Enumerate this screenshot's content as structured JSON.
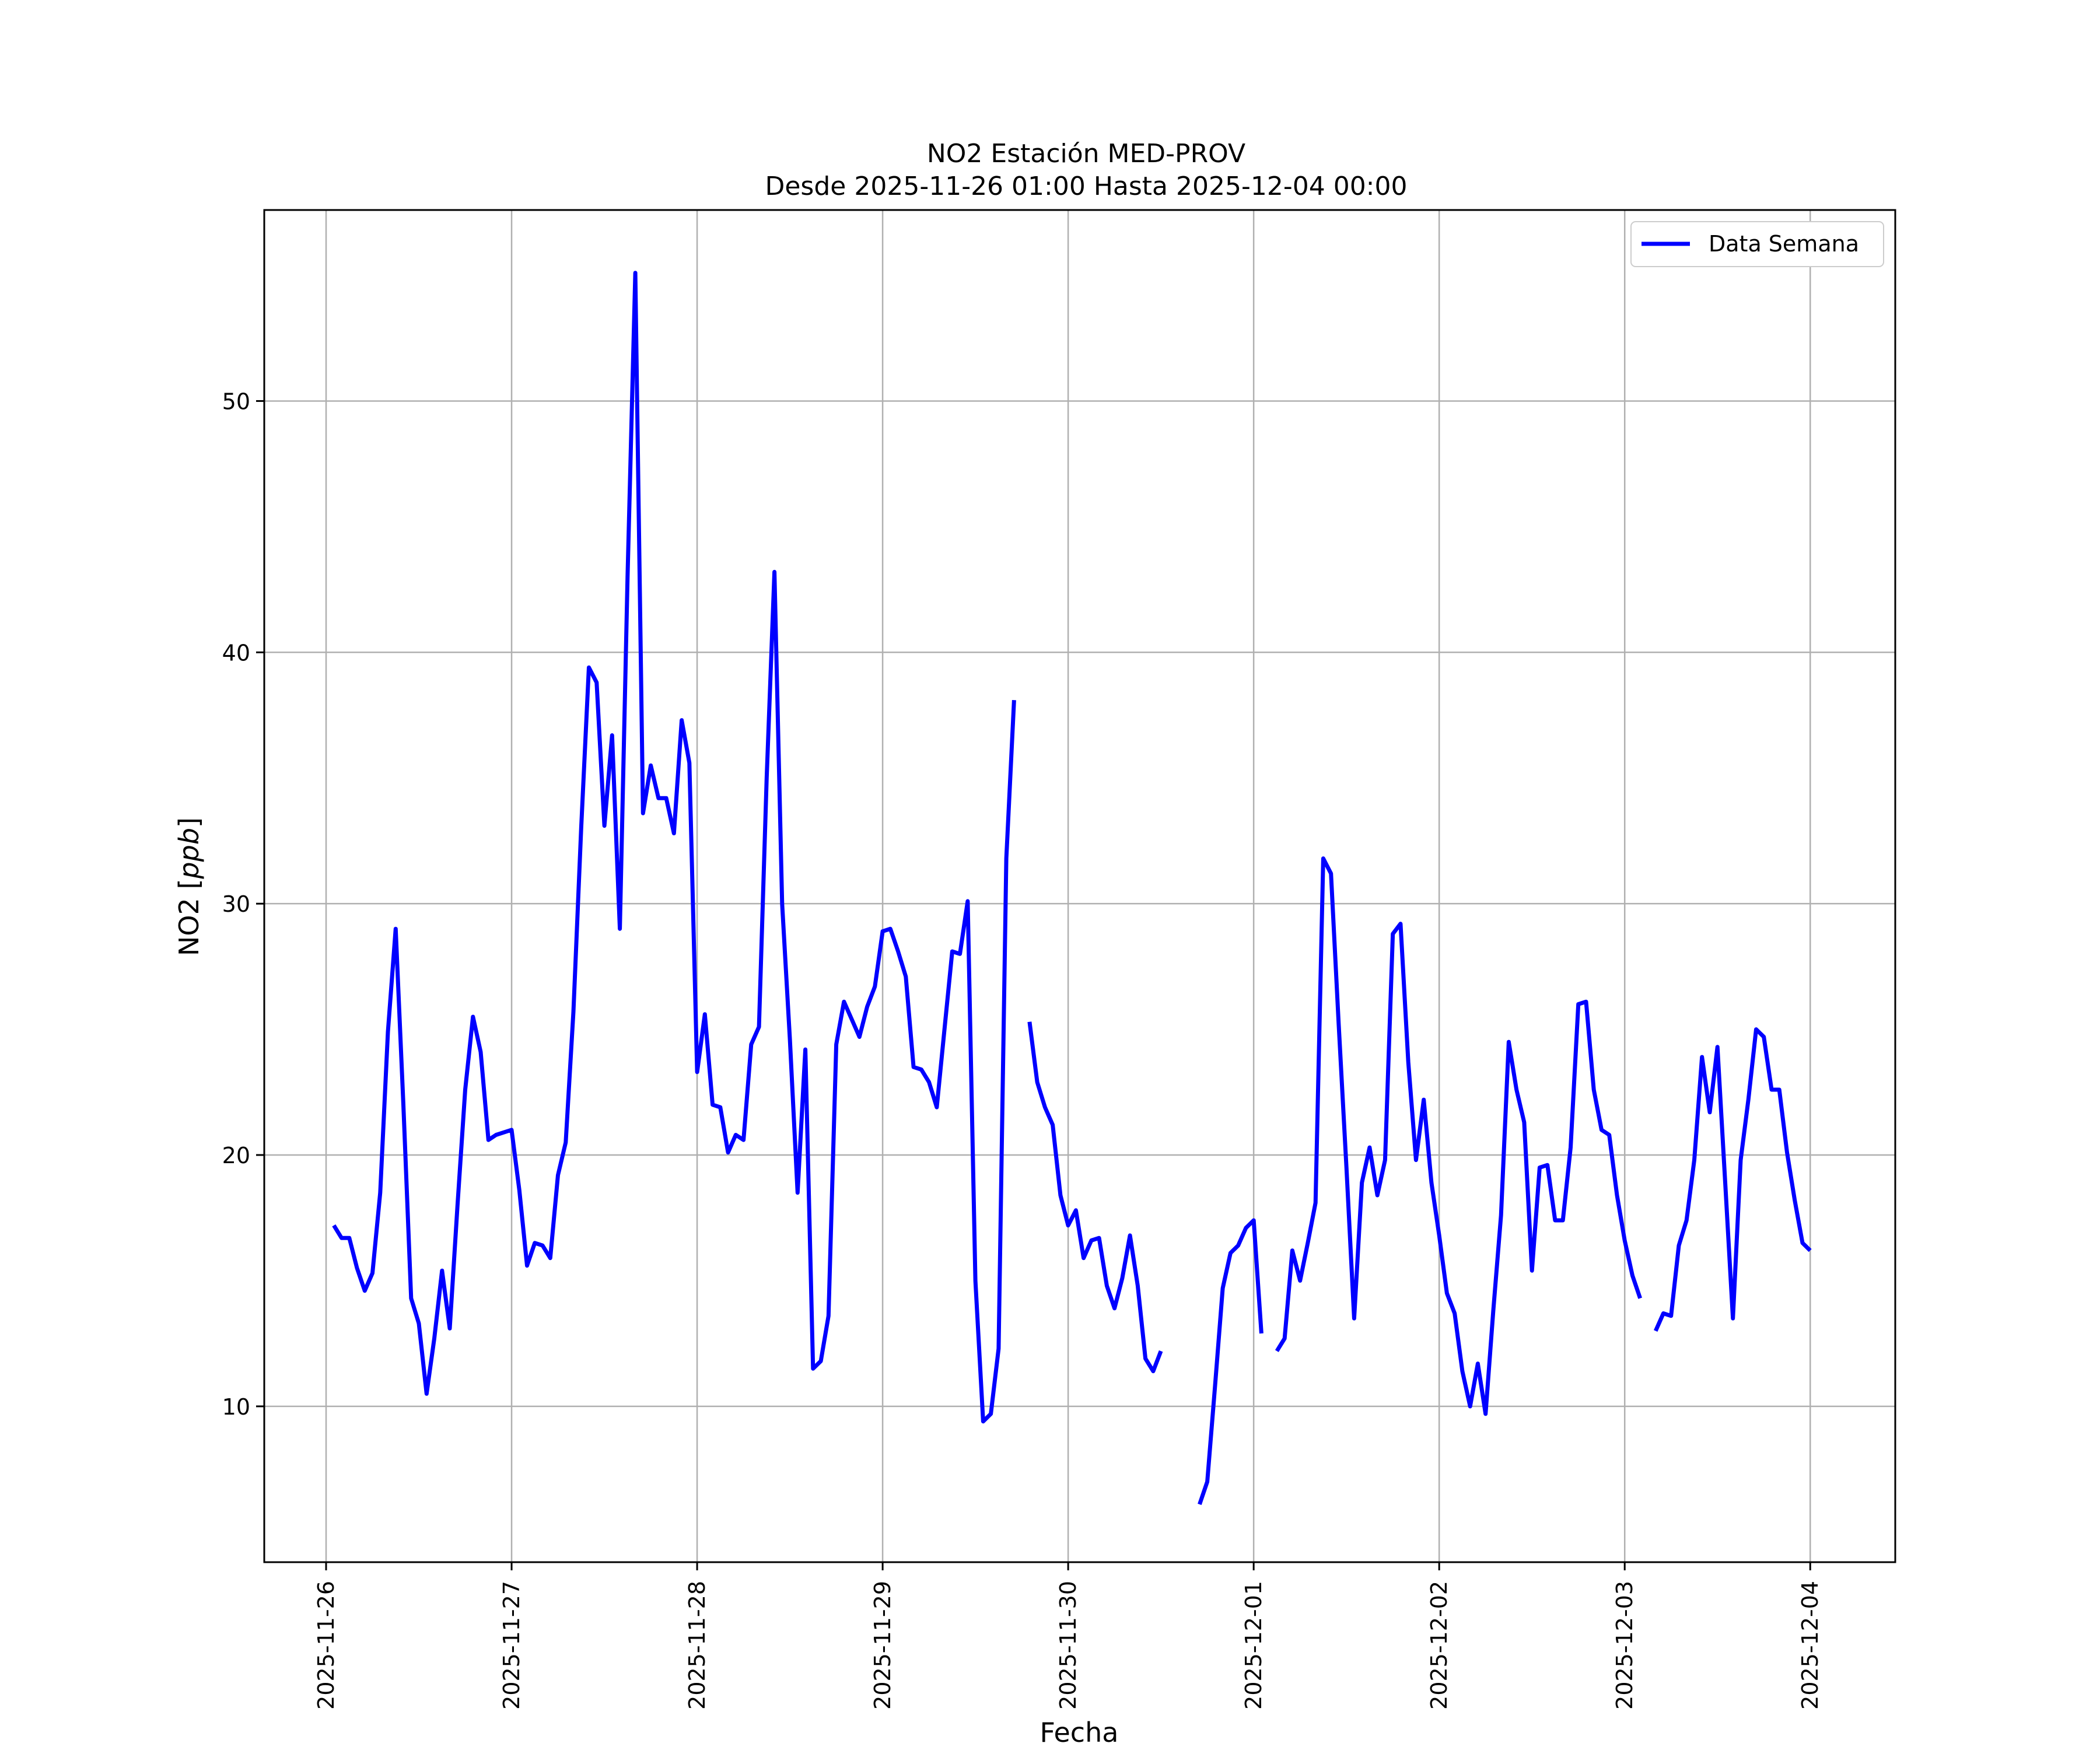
{
  "chart_data": {
    "type": "line",
    "title": "NO2 Estación MED-PROV",
    "subtitle": "Desde 2025-11-26 01:00 Hasta 2025-12-04 00:00",
    "xlabel": "Fecha",
    "ylabel": "NO2 [ppb]",
    "ylabel_main": "NO2 [",
    "ylabel_unit": "ppb",
    "ylabel_close": "]",
    "x_tick_labels": [
      "2025-11-26",
      "2025-11-27",
      "2025-11-28",
      "2025-11-29",
      "2025-11-30",
      "2025-12-01",
      "2025-12-02",
      "2025-12-03",
      "2025-12-04"
    ],
    "y_ticks": [
      10,
      20,
      30,
      40,
      50
    ],
    "x_range": [
      "2025-11-25 16:00",
      "2025-12-04 11:00"
    ],
    "ylim": [
      3.8,
      57.6
    ],
    "grid": true,
    "legend_position": "top-right",
    "series": [
      {
        "name": "Data Semana",
        "color": "#0000ff",
        "start": "2025-11-26 01:00",
        "interval_hours": 1,
        "values": [
          17.2,
          16.7,
          16.7,
          15.5,
          14.6,
          15.3,
          18.5,
          24.9,
          29.0,
          22.0,
          14.3,
          13.3,
          10.5,
          12.7,
          15.4,
          13.1,
          18.0,
          22.6,
          25.5,
          24.1,
          20.6,
          20.8,
          20.9,
          21.0,
          18.6,
          15.6,
          16.5,
          16.4,
          15.9,
          19.2,
          20.5,
          25.7,
          33.0,
          39.4,
          38.8,
          33.1,
          36.7,
          29.0,
          43.0,
          55.1,
          33.6,
          35.5,
          34.2,
          34.2,
          32.8,
          37.3,
          35.6,
          23.3,
          25.6,
          22.0,
          21.9,
          20.1,
          20.8,
          20.6,
          24.4,
          25.1,
          35.0,
          43.2,
          30.0,
          24.6,
          18.5,
          24.2,
          11.5,
          11.8,
          13.6,
          24.4,
          26.1,
          25.4,
          24.7,
          25.9,
          26.7,
          28.9,
          29.0,
          28.1,
          27.1,
          23.5,
          23.4,
          22.9,
          21.9,
          25.0,
          28.1,
          28.0,
          30.1,
          15.0,
          9.4,
          9.7,
          12.3,
          31.8,
          38.1,
          null,
          25.3,
          22.9,
          21.9,
          21.2,
          18.4,
          17.2,
          17.8,
          15.9,
          16.6,
          16.7,
          14.8,
          13.9,
          15.1,
          16.8,
          14.8,
          11.9,
          11.4,
          12.2,
          null,
          null,
          null,
          null,
          6.1,
          7.0,
          10.8,
          14.7,
          16.1,
          16.4,
          17.1,
          17.4,
          12.9,
          null,
          12.2,
          12.7,
          16.2,
          15.0,
          16.5,
          18.1,
          31.8,
          31.2,
          25.2,
          19.5,
          13.5,
          18.9,
          20.3,
          18.4,
          19.8,
          28.8,
          29.2,
          23.7,
          19.8,
          22.2,
          18.9,
          16.8,
          14.5,
          13.7,
          11.4,
          10.0,
          11.7,
          9.7,
          13.8,
          17.6,
          24.5,
          22.6,
          21.3,
          15.4,
          19.5,
          19.6,
          17.4,
          17.4,
          20.3,
          26.0,
          26.1,
          22.6,
          21.0,
          20.8,
          18.4,
          16.6,
          15.2,
          14.3,
          null,
          13.0,
          13.7,
          13.6,
          16.4,
          17.4,
          19.8,
          23.9,
          21.7,
          24.3,
          18.9,
          13.5,
          19.8,
          22.2,
          25.0,
          24.7,
          22.6,
          22.6,
          20.1,
          18.2,
          16.5,
          16.2
        ]
      }
    ]
  }
}
